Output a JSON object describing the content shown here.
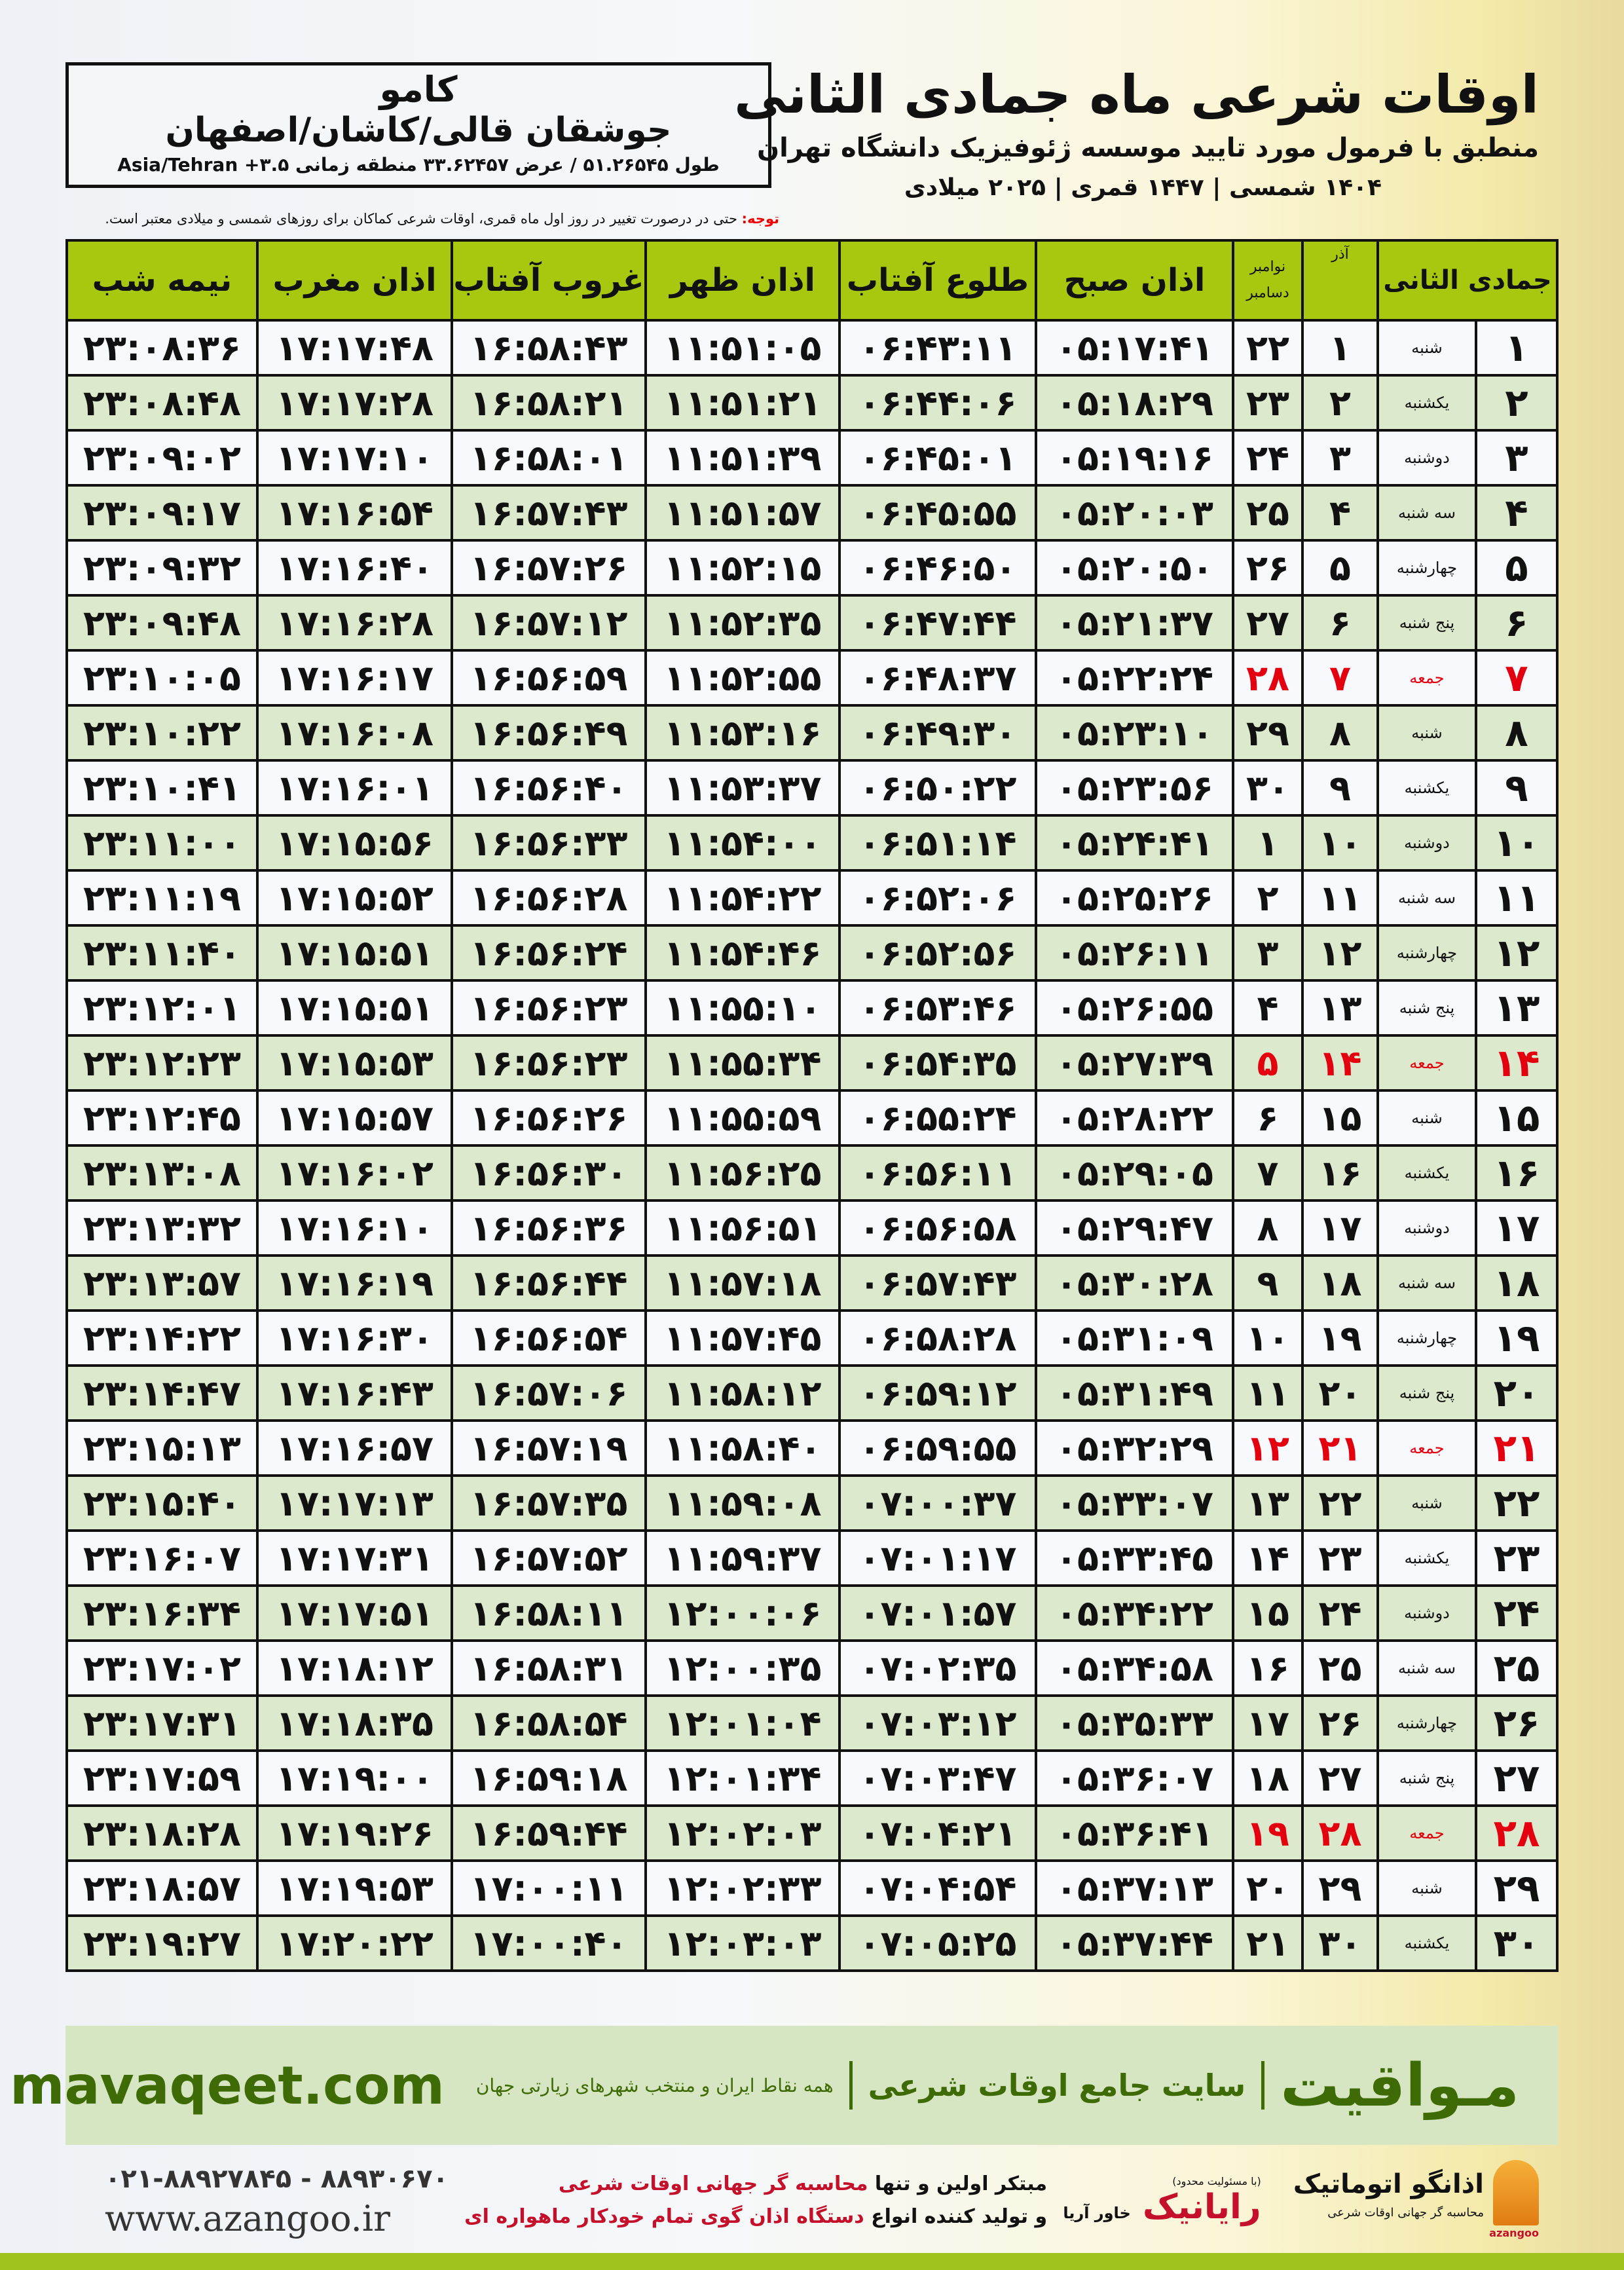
{
  "location": {
    "name": "کامو",
    "region": "جوشقان قالی/کاشان/اصفهان",
    "coords": "طول ۵۱.۲۶۵۴۵ / عرض ۳۳.۶۲۴۵۷ منطقه زمانی ۳.۵+ Asia/Tehran"
  },
  "header": {
    "title": "اوقات شرعی ماه جمادی الثانی",
    "subtitle": "منطبق با فرمول مورد تایید موسسه ژئوفیزیک دانشگاه تهران",
    "years": "۱۴۰۴ شمسی | ۱۴۴۷ قمری | ۲۰۲۵ میلادی"
  },
  "note": {
    "label": "توجه:",
    "text": " حتی در درصورت تغییر در روز اول ماه قمری، اوقات شرعی کماکان برای روزهای شمسی و میلادی معتبر است."
  },
  "colors": {
    "header_green": "#a7c80e",
    "row_green": "#dde9cc",
    "friday_red": "#e3000f",
    "brand_green": "#3f6b06"
  },
  "table": {
    "columns": {
      "month": "جمادی الثانی",
      "azar": "آذر",
      "greg_top": "نوامبر",
      "greg_bottom": "دسامبر",
      "fajr": "اذان صبح",
      "sunrise": "طلوع آفتاب",
      "dhuhr": "اذان ظهر",
      "sunset": "غروب آفتاب",
      "maghrib": "اذان مغرب",
      "midnight": "نیمه شب"
    },
    "rows": [
      {
        "day": "۱",
        "weekday": "شنبه",
        "azar": "۱",
        "greg": "۲۲",
        "friday": false,
        "times": [
          "۰۵:۱۷:۴۱",
          "۰۶:۴۳:۱۱",
          "۱۱:۵۱:۰۵",
          "۱۶:۵۸:۴۳",
          "۱۷:۱۷:۴۸",
          "۲۳:۰۸:۳۶"
        ]
      },
      {
        "day": "۲",
        "weekday": "یکشنبه",
        "azar": "۲",
        "greg": "۲۳",
        "friday": false,
        "times": [
          "۰۵:۱۸:۲۹",
          "۰۶:۴۴:۰۶",
          "۱۱:۵۱:۲۱",
          "۱۶:۵۸:۲۱",
          "۱۷:۱۷:۲۸",
          "۲۳:۰۸:۴۸"
        ]
      },
      {
        "day": "۳",
        "weekday": "دوشنبه",
        "azar": "۳",
        "greg": "۲۴",
        "friday": false,
        "times": [
          "۰۵:۱۹:۱۶",
          "۰۶:۴۵:۰۱",
          "۱۱:۵۱:۳۹",
          "۱۶:۵۸:۰۱",
          "۱۷:۱۷:۱۰",
          "۲۳:۰۹:۰۲"
        ]
      },
      {
        "day": "۴",
        "weekday": "سه شنبه",
        "azar": "۴",
        "greg": "۲۵",
        "friday": false,
        "times": [
          "۰۵:۲۰:۰۳",
          "۰۶:۴۵:۵۵",
          "۱۱:۵۱:۵۷",
          "۱۶:۵۷:۴۳",
          "۱۷:۱۶:۵۴",
          "۲۳:۰۹:۱۷"
        ]
      },
      {
        "day": "۵",
        "weekday": "چهارشنبه",
        "azar": "۵",
        "greg": "۲۶",
        "friday": false,
        "times": [
          "۰۵:۲۰:۵۰",
          "۰۶:۴۶:۵۰",
          "۱۱:۵۲:۱۵",
          "۱۶:۵۷:۲۶",
          "۱۷:۱۶:۴۰",
          "۲۳:۰۹:۳۲"
        ]
      },
      {
        "day": "۶",
        "weekday": "پنج شنبه",
        "azar": "۶",
        "greg": "۲۷",
        "friday": false,
        "times": [
          "۰۵:۲۱:۳۷",
          "۰۶:۴۷:۴۴",
          "۱۱:۵۲:۳۵",
          "۱۶:۵۷:۱۲",
          "۱۷:۱۶:۲۸",
          "۲۳:۰۹:۴۸"
        ]
      },
      {
        "day": "۷",
        "weekday": "جمعه",
        "azar": "۷",
        "greg": "۲۸",
        "friday": true,
        "times": [
          "۰۵:۲۲:۲۴",
          "۰۶:۴۸:۳۷",
          "۱۱:۵۲:۵۵",
          "۱۶:۵۶:۵۹",
          "۱۷:۱۶:۱۷",
          "۲۳:۱۰:۰۵"
        ]
      },
      {
        "day": "۸",
        "weekday": "شنبه",
        "azar": "۸",
        "greg": "۲۹",
        "friday": false,
        "times": [
          "۰۵:۲۳:۱۰",
          "۰۶:۴۹:۳۰",
          "۱۱:۵۳:۱۶",
          "۱۶:۵۶:۴۹",
          "۱۷:۱۶:۰۸",
          "۲۳:۱۰:۲۲"
        ]
      },
      {
        "day": "۹",
        "weekday": "یکشنبه",
        "azar": "۹",
        "greg": "۳۰",
        "friday": false,
        "times": [
          "۰۵:۲۳:۵۶",
          "۰۶:۵۰:۲۲",
          "۱۱:۵۳:۳۷",
          "۱۶:۵۶:۴۰",
          "۱۷:۱۶:۰۱",
          "۲۳:۱۰:۴۱"
        ]
      },
      {
        "day": "۱۰",
        "weekday": "دوشنبه",
        "azar": "۱۰",
        "greg": "۱",
        "friday": false,
        "times": [
          "۰۵:۲۴:۴۱",
          "۰۶:۵۱:۱۴",
          "۱۱:۵۴:۰۰",
          "۱۶:۵۶:۳۳",
          "۱۷:۱۵:۵۶",
          "۲۳:۱۱:۰۰"
        ]
      },
      {
        "day": "۱۱",
        "weekday": "سه شنبه",
        "azar": "۱۱",
        "greg": "۲",
        "friday": false,
        "times": [
          "۰۵:۲۵:۲۶",
          "۰۶:۵۲:۰۶",
          "۱۱:۵۴:۲۲",
          "۱۶:۵۶:۲۸",
          "۱۷:۱۵:۵۲",
          "۲۳:۱۱:۱۹"
        ]
      },
      {
        "day": "۱۲",
        "weekday": "چهارشنبه",
        "azar": "۱۲",
        "greg": "۳",
        "friday": false,
        "times": [
          "۰۵:۲۶:۱۱",
          "۰۶:۵۲:۵۶",
          "۱۱:۵۴:۴۶",
          "۱۶:۵۶:۲۴",
          "۱۷:۱۵:۵۱",
          "۲۳:۱۱:۴۰"
        ]
      },
      {
        "day": "۱۳",
        "weekday": "پنج شنبه",
        "azar": "۱۳",
        "greg": "۴",
        "friday": false,
        "times": [
          "۰۵:۲۶:۵۵",
          "۰۶:۵۳:۴۶",
          "۱۱:۵۵:۱۰",
          "۱۶:۵۶:۲۳",
          "۱۷:۱۵:۵۱",
          "۲۳:۱۲:۰۱"
        ]
      },
      {
        "day": "۱۴",
        "weekday": "جمعه",
        "azar": "۱۴",
        "greg": "۵",
        "friday": true,
        "times": [
          "۰۵:۲۷:۳۹",
          "۰۶:۵۴:۳۵",
          "۱۱:۵۵:۳۴",
          "۱۶:۵۶:۲۳",
          "۱۷:۱۵:۵۳",
          "۲۳:۱۲:۲۳"
        ]
      },
      {
        "day": "۱۵",
        "weekday": "شنبه",
        "azar": "۱۵",
        "greg": "۶",
        "friday": false,
        "times": [
          "۰۵:۲۸:۲۲",
          "۰۶:۵۵:۲۴",
          "۱۱:۵۵:۵۹",
          "۱۶:۵۶:۲۶",
          "۱۷:۱۵:۵۷",
          "۲۳:۱۲:۴۵"
        ]
      },
      {
        "day": "۱۶",
        "weekday": "یکشنبه",
        "azar": "۱۶",
        "greg": "۷",
        "friday": false,
        "times": [
          "۰۵:۲۹:۰۵",
          "۰۶:۵۶:۱۱",
          "۱۱:۵۶:۲۵",
          "۱۶:۵۶:۳۰",
          "۱۷:۱۶:۰۲",
          "۲۳:۱۳:۰۸"
        ]
      },
      {
        "day": "۱۷",
        "weekday": "دوشنبه",
        "azar": "۱۷",
        "greg": "۸",
        "friday": false,
        "times": [
          "۰۵:۲۹:۴۷",
          "۰۶:۵۶:۵۸",
          "۱۱:۵۶:۵۱",
          "۱۶:۵۶:۳۶",
          "۱۷:۱۶:۱۰",
          "۲۳:۱۳:۳۲"
        ]
      },
      {
        "day": "۱۸",
        "weekday": "سه شنبه",
        "azar": "۱۸",
        "greg": "۹",
        "friday": false,
        "times": [
          "۰۵:۳۰:۲۸",
          "۰۶:۵۷:۴۳",
          "۱۱:۵۷:۱۸",
          "۱۶:۵۶:۴۴",
          "۱۷:۱۶:۱۹",
          "۲۳:۱۳:۵۷"
        ]
      },
      {
        "day": "۱۹",
        "weekday": "چهارشنبه",
        "azar": "۱۹",
        "greg": "۱۰",
        "friday": false,
        "times": [
          "۰۵:۳۱:۰۹",
          "۰۶:۵۸:۲۸",
          "۱۱:۵۷:۴۵",
          "۱۶:۵۶:۵۴",
          "۱۷:۱۶:۳۰",
          "۲۳:۱۴:۲۲"
        ]
      },
      {
        "day": "۲۰",
        "weekday": "پنج شنبه",
        "azar": "۲۰",
        "greg": "۱۱",
        "friday": false,
        "times": [
          "۰۵:۳۱:۴۹",
          "۰۶:۵۹:۱۲",
          "۱۱:۵۸:۱۲",
          "۱۶:۵۷:۰۶",
          "۱۷:۱۶:۴۳",
          "۲۳:۱۴:۴۷"
        ]
      },
      {
        "day": "۲۱",
        "weekday": "جمعه",
        "azar": "۲۱",
        "greg": "۱۲",
        "friday": true,
        "times": [
          "۰۵:۳۲:۲۹",
          "۰۶:۵۹:۵۵",
          "۱۱:۵۸:۴۰",
          "۱۶:۵۷:۱۹",
          "۱۷:۱۶:۵۷",
          "۲۳:۱۵:۱۳"
        ]
      },
      {
        "day": "۲۲",
        "weekday": "شنبه",
        "azar": "۲۲",
        "greg": "۱۳",
        "friday": false,
        "times": [
          "۰۵:۳۳:۰۷",
          "۰۷:۰۰:۳۷",
          "۱۱:۵۹:۰۸",
          "۱۶:۵۷:۳۵",
          "۱۷:۱۷:۱۳",
          "۲۳:۱۵:۴۰"
        ]
      },
      {
        "day": "۲۳",
        "weekday": "یکشنبه",
        "azar": "۲۳",
        "greg": "۱۴",
        "friday": false,
        "times": [
          "۰۵:۳۳:۴۵",
          "۰۷:۰۱:۱۷",
          "۱۱:۵۹:۳۷",
          "۱۶:۵۷:۵۲",
          "۱۷:۱۷:۳۱",
          "۲۳:۱۶:۰۷"
        ]
      },
      {
        "day": "۲۴",
        "weekday": "دوشنبه",
        "azar": "۲۴",
        "greg": "۱۵",
        "friday": false,
        "times": [
          "۰۵:۳۴:۲۲",
          "۰۷:۰۱:۵۷",
          "۱۲:۰۰:۰۶",
          "۱۶:۵۸:۱۱",
          "۱۷:۱۷:۵۱",
          "۲۳:۱۶:۳۴"
        ]
      },
      {
        "day": "۲۵",
        "weekday": "سه شنبه",
        "azar": "۲۵",
        "greg": "۱۶",
        "friday": false,
        "times": [
          "۰۵:۳۴:۵۸",
          "۰۷:۰۲:۳۵",
          "۱۲:۰۰:۳۵",
          "۱۶:۵۸:۳۱",
          "۱۷:۱۸:۱۲",
          "۲۳:۱۷:۰۲"
        ]
      },
      {
        "day": "۲۶",
        "weekday": "چهارشنبه",
        "azar": "۲۶",
        "greg": "۱۷",
        "friday": false,
        "times": [
          "۰۵:۳۵:۳۳",
          "۰۷:۰۳:۱۲",
          "۱۲:۰۱:۰۴",
          "۱۶:۵۸:۵۴",
          "۱۷:۱۸:۳۵",
          "۲۳:۱۷:۳۱"
        ]
      },
      {
        "day": "۲۷",
        "weekday": "پنج شنبه",
        "azar": "۲۷",
        "greg": "۱۸",
        "friday": false,
        "times": [
          "۰۵:۳۶:۰۷",
          "۰۷:۰۳:۴۷",
          "۱۲:۰۱:۳۴",
          "۱۶:۵۹:۱۸",
          "۱۷:۱۹:۰۰",
          "۲۳:۱۷:۵۹"
        ]
      },
      {
        "day": "۲۸",
        "weekday": "جمعه",
        "azar": "۲۸",
        "greg": "۱۹",
        "friday": true,
        "times": [
          "۰۵:۳۶:۴۱",
          "۰۷:۰۴:۲۱",
          "۱۲:۰۲:۰۳",
          "۱۶:۵۹:۴۴",
          "۱۷:۱۹:۲۶",
          "۲۳:۱۸:۲۸"
        ]
      },
      {
        "day": "۲۹",
        "weekday": "شنبه",
        "azar": "۲۹",
        "greg": "۲۰",
        "friday": false,
        "times": [
          "۰۵:۳۷:۱۳",
          "۰۷:۰۴:۵۴",
          "۱۲:۰۲:۳۳",
          "۱۷:۰۰:۱۱",
          "۱۷:۱۹:۵۳",
          "۲۳:۱۸:۵۷"
        ]
      },
      {
        "day": "۳۰",
        "weekday": "یکشنبه",
        "azar": "۳۰",
        "greg": "۲۱",
        "friday": false,
        "times": [
          "۰۵:۳۷:۴۴",
          "۰۷:۰۵:۲۵",
          "۱۲:۰۳:۰۳",
          "۱۷:۰۰:۴۰",
          "۱۷:۲۰:۲۲",
          "۲۳:۱۹:۲۷"
        ]
      }
    ]
  },
  "banner": {
    "site": "mavaqeet.com",
    "brand": "مـواقیت",
    "slogan": "سایت جامع اوقات شرعی",
    "slogan2": "همه نقاط ایران و منتخب شهرهای زیارتی جهان"
  },
  "footer": {
    "phone": "۰۲۱-۸۸۹۲۷۸۴۵ - ۸۸۹۳۰۶۷۰",
    "website": "www.azangoo.ir",
    "promo_line1_a": "مبتکر اولین و تنها ",
    "promo_line1_b": "محاسبه گر جهانی اوقات شرعی",
    "promo_line2_a": "و تولید کننده انواع ",
    "promo_line2_b": "دستگاه اذان گوی تمام خودکار ماهواره ای",
    "logo2_tag": "(با مسئولیت محدود)",
    "logo2_name_a": "رایانیک",
    "logo2_name_b": "خاور آریا",
    "logo3_name": "اذانگو اتوماتیک",
    "logo3_sub": "محاسبه گر جهانی اوقات شرعی",
    "logo3_latin": "azangoo"
  }
}
